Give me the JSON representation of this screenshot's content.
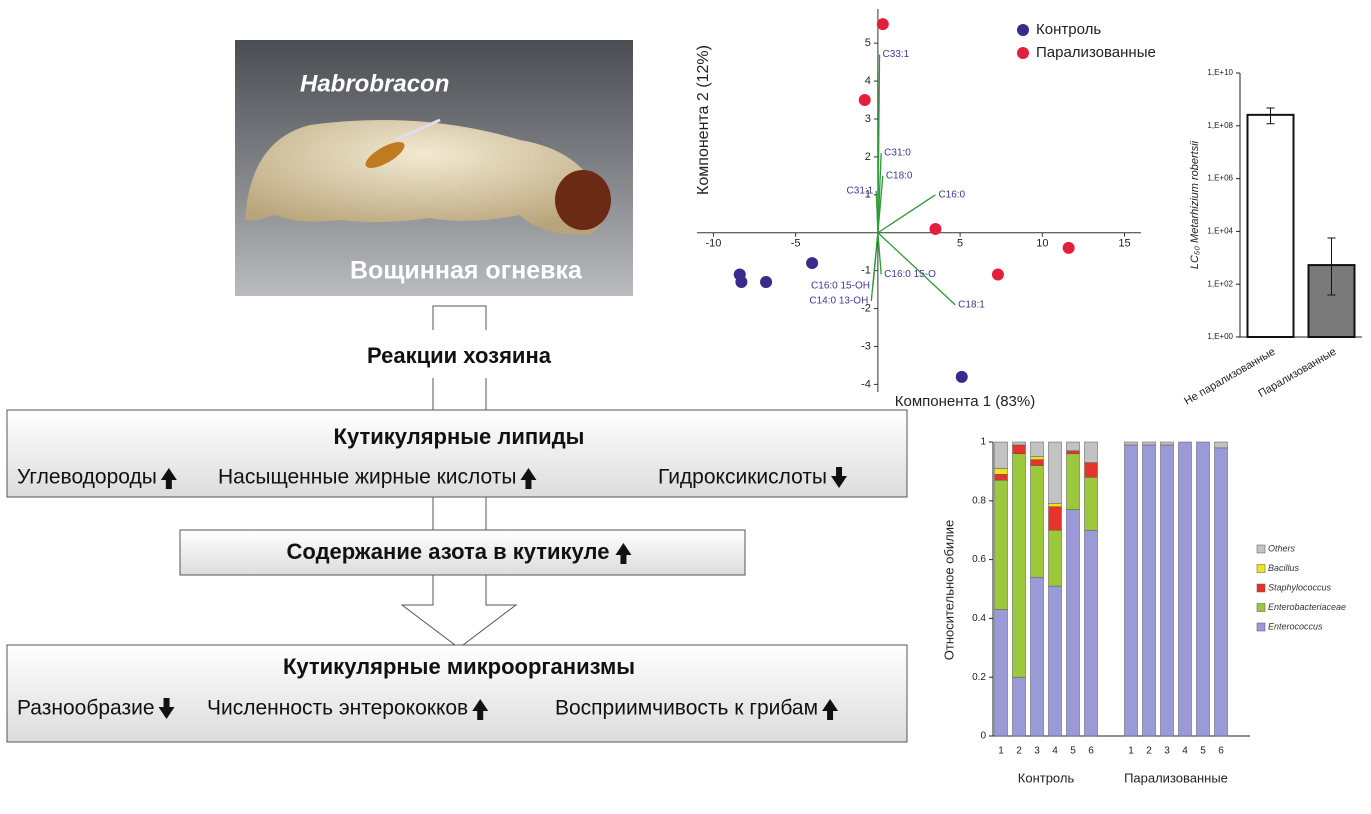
{
  "diagram": {
    "photo": {
      "species": "Habrobracon",
      "host": "Вощинная огневка"
    },
    "reaction": "Реакции хозяина",
    "lipids": {
      "title": "Кутикулярные липиды",
      "items": [
        {
          "label": "Углеводороды",
          "direction": "up"
        },
        {
          "label": "Насыщенные жирные кислоты",
          "direction": "up"
        },
        {
          "label": "Гидроксикислоты",
          "direction": "down"
        }
      ]
    },
    "nitrogen": {
      "label": "Содержание азота в кутикуле",
      "direction": "up"
    },
    "microbes": {
      "title": "Кутикулярные микроорганизмы",
      "items": [
        {
          "label": "Разнообразие",
          "direction": "down"
        },
        {
          "label": "Численность энтерококков",
          "direction": "up"
        },
        {
          "label": "Восприимчивость к грибам",
          "direction": "up"
        }
      ]
    }
  },
  "chart_data": [
    {
      "type": "scatter",
      "xlabel": "Компонента 1 (83%)",
      "ylabel": "Компонента 2 (12%)",
      "xlim": [
        -11,
        16
      ],
      "ylim": [
        -4.2,
        5.9
      ],
      "xticks": [
        -10,
        -5,
        5,
        10,
        15
      ],
      "yticks": [
        -4,
        -3,
        -2,
        -1,
        1,
        2,
        3,
        4,
        5
      ],
      "legend": "top-right",
      "series": [
        {
          "name": "Контроль",
          "color": "#3a2a8c",
          "x": [
            -8.4,
            -8.3,
            -6.8,
            -4.0,
            5.1
          ],
          "y": [
            -1.1,
            -1.3,
            -1.3,
            -0.8,
            -3.8
          ]
        },
        {
          "name": "Парализованные",
          "color": "#e2203e",
          "x": [
            0.3,
            -0.8,
            3.5,
            7.3,
            11.6
          ],
          "y": [
            5.5,
            3.5,
            0.1,
            -1.1,
            -0.4
          ]
        }
      ],
      "loadings_color": "#2e9a3a",
      "loadings": [
        {
          "name": "C33:1",
          "x": 0.1,
          "y": 4.7
        },
        {
          "name": "C31:0",
          "x": 0.2,
          "y": 2.1
        },
        {
          "name": "C18:0",
          "x": 0.3,
          "y": 1.5
        },
        {
          "name": "C31:1",
          "x": -0.1,
          "y": 1.1
        },
        {
          "name": "C16:0",
          "x": 3.5,
          "y": 1.0
        },
        {
          "name": "C16:0 15-O",
          "x": 0.2,
          "y": -1.1
        },
        {
          "name": "C16:0 15-OH",
          "x": -0.3,
          "y": -1.4
        },
        {
          "name": "C14:0 13-OH",
          "x": -0.4,
          "y": -1.8
        },
        {
          "name": "C18:1",
          "x": 4.7,
          "y": -1.9
        }
      ]
    },
    {
      "type": "bar",
      "log_scale": true,
      "ylabel": "LC₅₀ Metarhizium robertsii",
      "categories": [
        "Не парализованные",
        "Парализованные"
      ],
      "values": [
        260000000,
        530
      ],
      "errors": [
        [
          120000000,
          470000000
        ],
        [
          39,
          5600
        ]
      ],
      "colors": [
        "#ffffff",
        "#7a7a7a"
      ],
      "ylim": [
        1,
        10000000000
      ],
      "yticks": [
        {
          "value": 1,
          "label": "1,E+00"
        },
        {
          "value": 100,
          "label": "1,E+02"
        },
        {
          "value": 10000,
          "label": "1,E+04"
        },
        {
          "value": 1000000,
          "label": "1,E+06"
        },
        {
          "value": 100000000,
          "label": "1,E+08"
        },
        {
          "value": 10000000000,
          "label": "1,E+10"
        }
      ]
    },
    {
      "type": "stacked-bar",
      "ylabel": "Относительное обилие",
      "categories": [
        "1",
        "2",
        "3",
        "4",
        "5",
        "6",
        "1",
        "2",
        "3",
        "4",
        "5",
        "6"
      ],
      "group_labels": [
        "Контроль",
        "Парализованные"
      ],
      "ylim": [
        0,
        1
      ],
      "yticks": [
        0,
        0.2,
        0.4,
        0.6,
        0.8,
        1
      ],
      "series": [
        {
          "name": "Enterococcus",
          "color": "#9a9ad8",
          "values": [
            0.43,
            0.2,
            0.54,
            0.51,
            0.77,
            0.7,
            0.99,
            0.99,
            0.99,
            1,
            1,
            0.98
          ]
        },
        {
          "name": "Enterobacteriaceae",
          "color": "#9cc83c",
          "values": [
            0.44,
            0.76,
            0.38,
            0.19,
            0.19,
            0.18,
            0,
            0,
            0,
            0,
            0,
            0
          ]
        },
        {
          "name": "Staphylococcus",
          "color": "#e8332a",
          "values": [
            0.02,
            0.03,
            0.02,
            0.08,
            0.01,
            0.05,
            0,
            0,
            0,
            0,
            0,
            0
          ]
        },
        {
          "name": "Bacillus",
          "color": "#f2e21e",
          "values": [
            0.02,
            0,
            0.01,
            0.01,
            0,
            0,
            0,
            0,
            0,
            0,
            0,
            0
          ]
        },
        {
          "name": "Others",
          "color": "#c2c2c2",
          "values": [
            0.09,
            0.01,
            0.05,
            0.21,
            0.03,
            0.07,
            0.01,
            0.01,
            0.01,
            0,
            0,
            0.02
          ]
        }
      ]
    }
  ]
}
